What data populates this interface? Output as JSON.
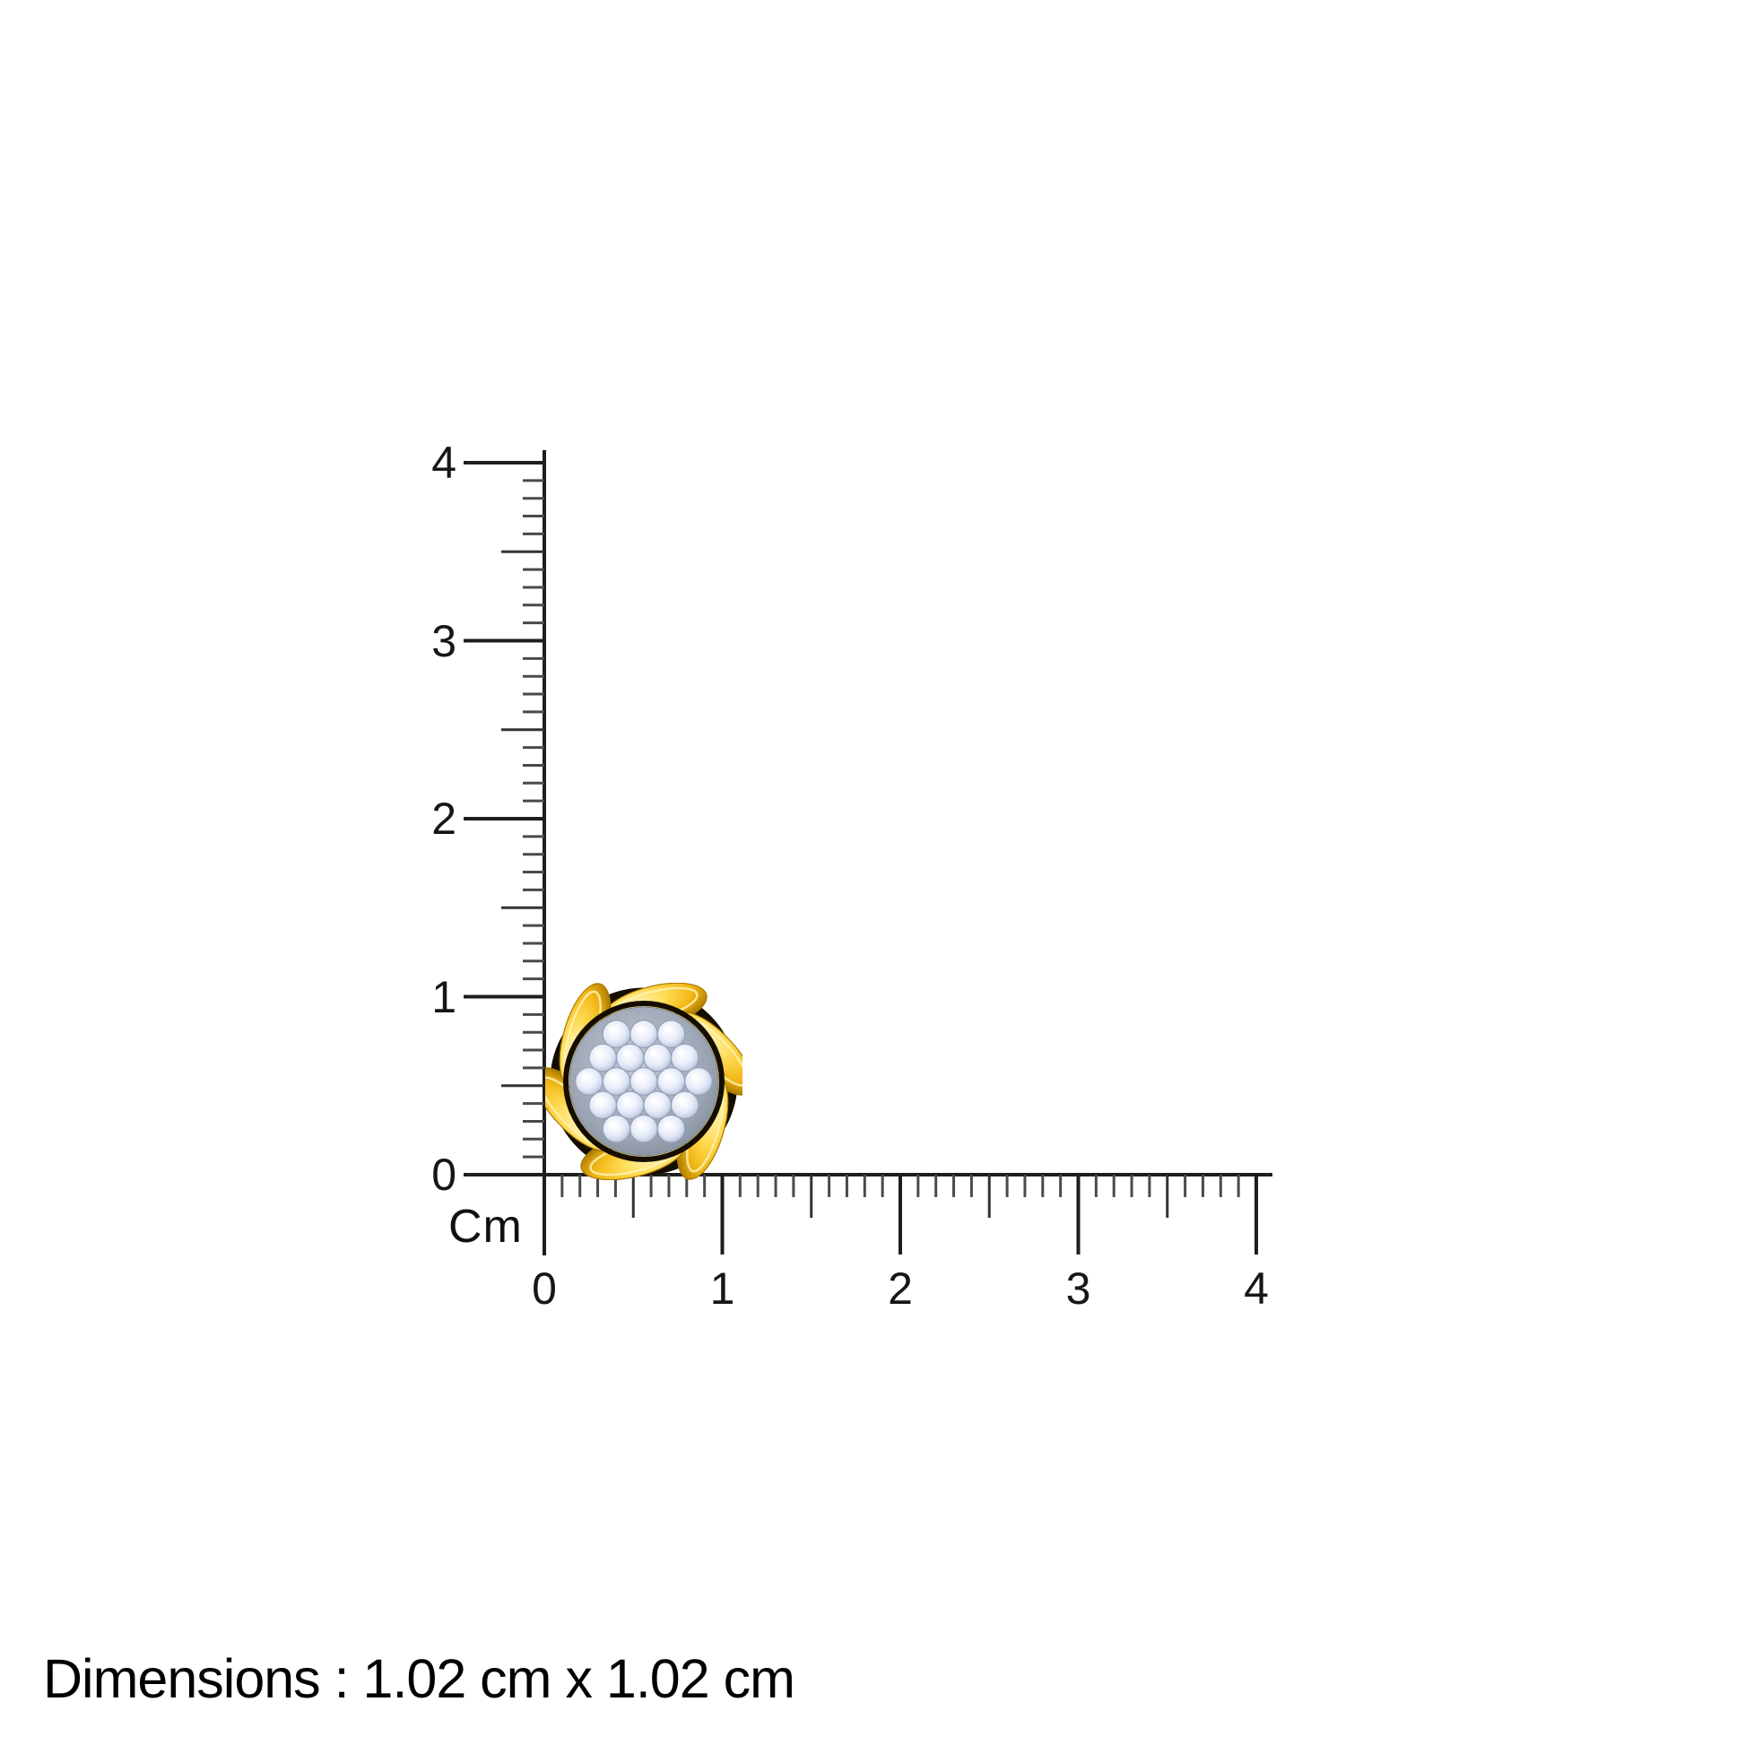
{
  "page": {
    "background_color": "#ffffff"
  },
  "ruler": {
    "unit_label": "Cm",
    "vertical_tick_labels": [
      "4",
      "3",
      "2",
      "1",
      "0"
    ],
    "horizontal_tick_labels": [
      "0",
      "1",
      "2",
      "3",
      "4"
    ],
    "cm_count": 4,
    "line_color": "#1e1e1e",
    "mid_tick_color": "#333333",
    "minor_tick_color": "#4a4a4a"
  },
  "jewelry": {
    "stone_count": 19,
    "gold_color": "#f2c027",
    "gold_highlight_color": "#fff4b8",
    "gold_deep_color": "#a87800",
    "shadow_ring_color": "#140d00",
    "diamond_color": "#e9eefb",
    "diamond_edge_color": "#aeb9d2",
    "metal_base_color": "#99a3b2",
    "prong_color": "#cfd5e2"
  },
  "footer": {
    "dimensions_text": "Dimensions : 1.02 cm x 1.02 cm"
  }
}
